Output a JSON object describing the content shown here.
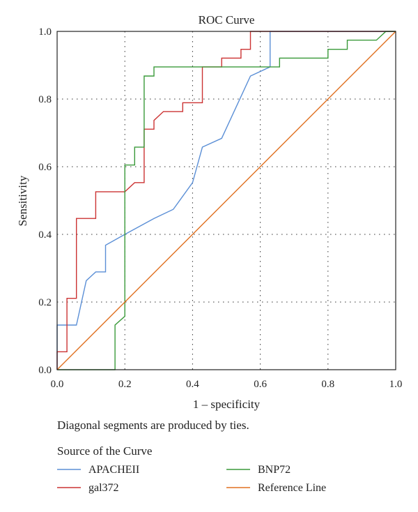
{
  "chart_data": {
    "type": "line",
    "title": "ROC Curve",
    "xlabel": "1 – specificity",
    "ylabel": "Sensitivity",
    "xlim": [
      0,
      1
    ],
    "ylim": [
      0,
      1
    ],
    "grid": true,
    "x_ticks": [
      "0.0",
      "0.2",
      "0.4",
      "0.6",
      "0.8",
      "1.0"
    ],
    "y_ticks": [
      "0.0",
      "0.2",
      "0.4",
      "0.6",
      "0.8",
      "1.0"
    ],
    "note": "Diagonal segments are produced by ties.",
    "legend_title": "Source of the Curve",
    "legend_placement": "bottom",
    "series": [
      {
        "name": "APACHEII",
        "color": "#5b8fd6",
        "points": [
          [
            0,
            0
          ],
          [
            0,
            0.132
          ],
          [
            0.057,
            0.132
          ],
          [
            0.086,
            0.263
          ],
          [
            0.114,
            0.289
          ],
          [
            0.143,
            0.289
          ],
          [
            0.143,
            0.368
          ],
          [
            0.2,
            0.4
          ],
          [
            0.286,
            0.447
          ],
          [
            0.343,
            0.474
          ],
          [
            0.4,
            0.553
          ],
          [
            0.429,
            0.658
          ],
          [
            0.486,
            0.684
          ],
          [
            0.571,
            0.868
          ],
          [
            0.629,
            0.895
          ],
          [
            0.629,
            1.0
          ],
          [
            1.0,
            1.0
          ]
        ]
      },
      {
        "name": "gal372",
        "color": "#cc3333",
        "points": [
          [
            0,
            0
          ],
          [
            0,
            0.053
          ],
          [
            0.029,
            0.053
          ],
          [
            0.029,
            0.211
          ],
          [
            0.057,
            0.211
          ],
          [
            0.057,
            0.447
          ],
          [
            0.114,
            0.447
          ],
          [
            0.114,
            0.526
          ],
          [
            0.2,
            0.526
          ],
          [
            0.2,
            0.526
          ],
          [
            0.229,
            0.553
          ],
          [
            0.257,
            0.553
          ],
          [
            0.257,
            0.711
          ],
          [
            0.286,
            0.711
          ],
          [
            0.286,
            0.737
          ],
          [
            0.314,
            0.763
          ],
          [
            0.371,
            0.763
          ],
          [
            0.371,
            0.789
          ],
          [
            0.429,
            0.789
          ],
          [
            0.429,
            0.895
          ],
          [
            0.486,
            0.895
          ],
          [
            0.486,
            0.921
          ],
          [
            0.543,
            0.921
          ],
          [
            0.543,
            0.947
          ],
          [
            0.571,
            0.947
          ],
          [
            0.571,
            1.0
          ],
          [
            1.0,
            1.0
          ]
        ]
      },
      {
        "name": "BNP72",
        "color": "#3a9a3a",
        "points": [
          [
            0,
            0
          ],
          [
            0.171,
            0
          ],
          [
            0.171,
            0.132
          ],
          [
            0.2,
            0.158
          ],
          [
            0.2,
            0.605
          ],
          [
            0.229,
            0.605
          ],
          [
            0.229,
            0.658
          ],
          [
            0.257,
            0.658
          ],
          [
            0.257,
            0.868
          ],
          [
            0.286,
            0.868
          ],
          [
            0.286,
            0.895
          ],
          [
            0.657,
            0.895
          ],
          [
            0.657,
            0.921
          ],
          [
            0.8,
            0.921
          ],
          [
            0.8,
            0.947
          ],
          [
            0.857,
            0.947
          ],
          [
            0.857,
            0.974
          ],
          [
            0.943,
            0.974
          ],
          [
            0.971,
            1.0
          ],
          [
            1.0,
            1.0
          ]
        ]
      },
      {
        "name": "Reference Line",
        "color": "#e07020",
        "points": [
          [
            0,
            0
          ],
          [
            1,
            1
          ]
        ]
      }
    ]
  }
}
